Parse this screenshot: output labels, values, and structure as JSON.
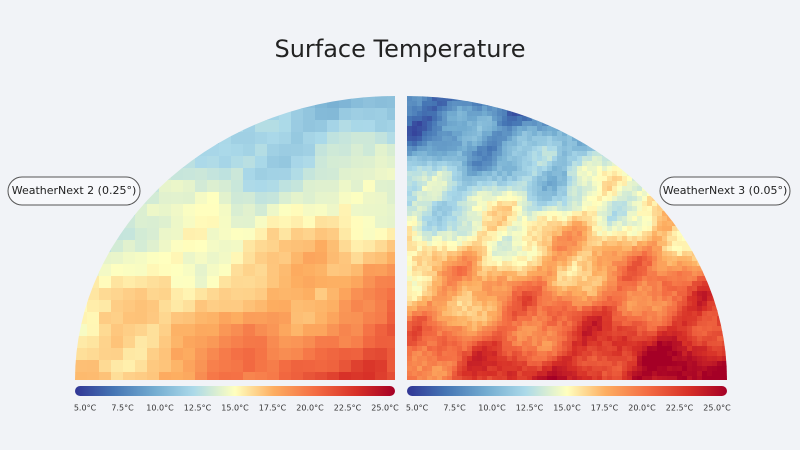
{
  "title": "Surface Temperature",
  "panels": [
    {
      "label": "WeatherNext 2 (0.25°)",
      "colorbar": {
        "ticks": [
          {
            "value": 5,
            "label": "5.0°C"
          },
          {
            "value": 7.5,
            "label": "7.5°C"
          },
          {
            "value": 10,
            "label": "10.0°C"
          },
          {
            "value": 12.5,
            "label": "12.5°C"
          },
          {
            "value": 15,
            "label": "15.0°C"
          },
          {
            "value": 17.5,
            "label": "17.5°C"
          },
          {
            "value": 20,
            "label": "20.0°C"
          },
          {
            "value": 22.5,
            "label": "22.5°C"
          },
          {
            "value": 25,
            "label": "25.0°C"
          }
        ]
      }
    },
    {
      "label": "WeatherNext 3 (0.05°)",
      "colorbar": {
        "ticks": [
          {
            "value": 5,
            "label": "5.0°C"
          },
          {
            "value": 7.5,
            "label": "7.5°C"
          },
          {
            "value": 10,
            "label": "10.0°C"
          },
          {
            "value": 12.5,
            "label": "12.5°C"
          },
          {
            "value": 15,
            "label": "15.0°C"
          },
          {
            "value": 17.5,
            "label": "17.5°C"
          },
          {
            "value": 20,
            "label": "20.0°C"
          },
          {
            "value": 22.5,
            "label": "22.5°C"
          },
          {
            "value": 25,
            "label": "25.0°C"
          }
        ]
      }
    }
  ]
}
